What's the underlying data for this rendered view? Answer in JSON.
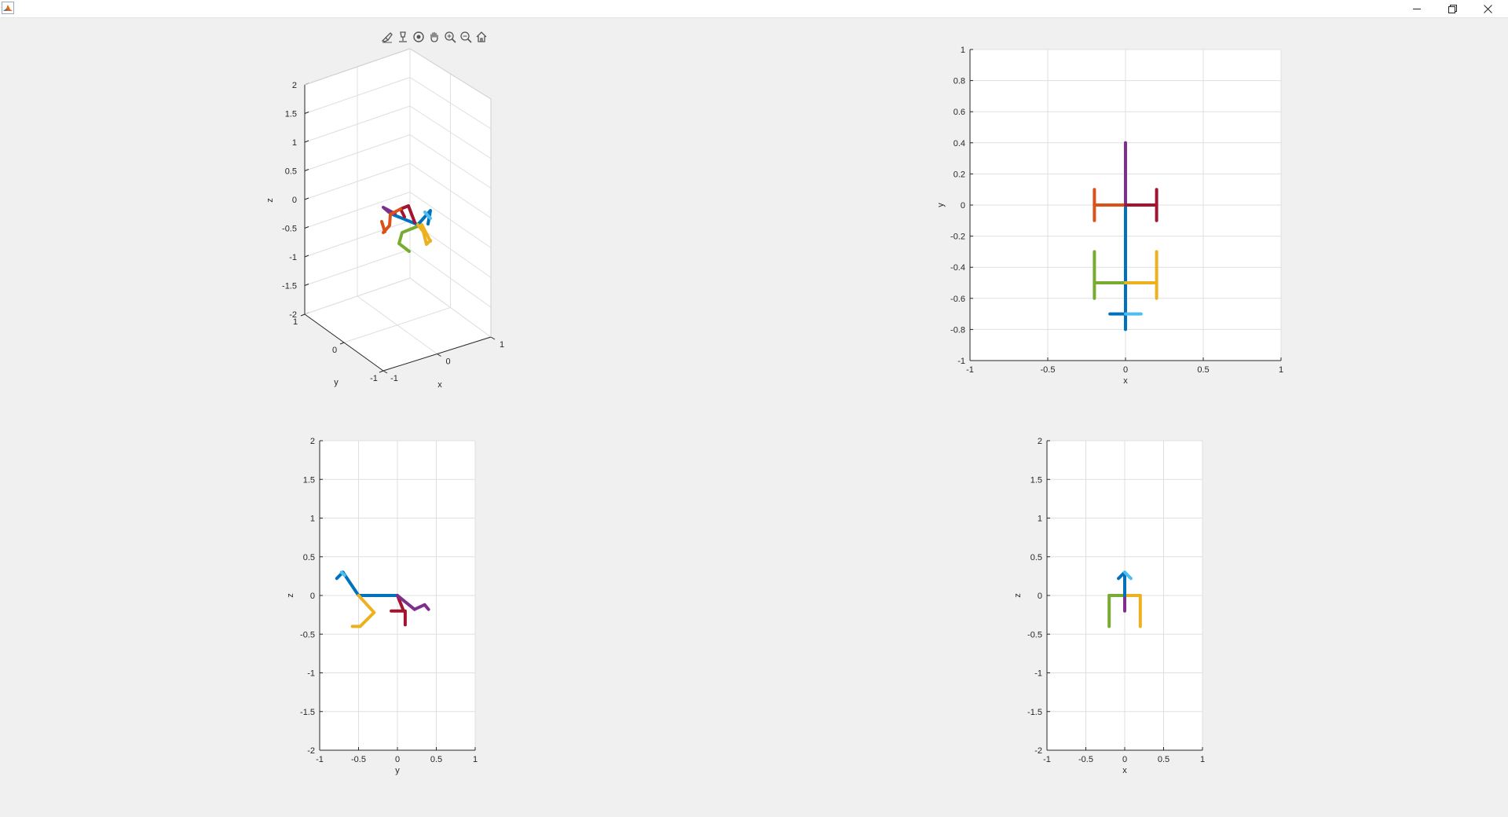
{
  "window": {
    "app_icon": "matlab-logo-icon",
    "controls": [
      "minimize-icon",
      "restore-icon",
      "close-icon"
    ]
  },
  "axes_toolbar": {
    "icons": [
      "brush-icon",
      "data-tips-icon",
      "rotate-3d-icon",
      "pan-hand-icon",
      "zoom-in-icon",
      "zoom-out-icon",
      "home-icon"
    ]
  },
  "chart_data": [
    {
      "type": "line",
      "view": "3d",
      "xlabel": "x",
      "ylabel": "y",
      "zlabel": "z",
      "xlim": [
        -1,
        1
      ],
      "ylim": [
        -1,
        1
      ],
      "zlim": [
        -2,
        2
      ],
      "xticks": [
        "-1",
        "0",
        "1"
      ],
      "yticks": [
        "-1",
        "0",
        "1"
      ],
      "zticks": [
        "-2",
        "-1.5",
        "-1",
        "-0.5",
        "0",
        "0.5",
        "1",
        "1.5",
        "2"
      ],
      "grid": true
    },
    {
      "type": "line",
      "xlabel": "x",
      "ylabel": "y",
      "xlim": [
        -1,
        1
      ],
      "ylim": [
        -1,
        1
      ],
      "xticks": [
        "-1",
        "-0.5",
        "0",
        "0.5",
        "1"
      ],
      "yticks": [
        "-1",
        "-0.8",
        "-0.6",
        "-0.4",
        "-0.2",
        "0",
        "0.2",
        "0.4",
        "0.6",
        "0.8",
        "1"
      ],
      "grid": true,
      "series": [
        {
          "color": "#7e2f8e",
          "x": [
            0,
            0
          ],
          "y": [
            0,
            0.4
          ]
        },
        {
          "color": "#0072bd",
          "x": [
            0,
            0
          ],
          "y": [
            0,
            -0.8
          ]
        },
        {
          "color": "#d95319",
          "x": [
            0,
            -0.2
          ],
          "y": [
            0,
            0
          ]
        },
        {
          "color": "#d95319",
          "x": [
            -0.2,
            -0.2
          ],
          "y": [
            -0.1,
            0.1
          ]
        },
        {
          "color": "#a2142f",
          "x": [
            0,
            0.2
          ],
          "y": [
            0,
            0
          ]
        },
        {
          "color": "#a2142f",
          "x": [
            0.2,
            0.2
          ],
          "y": [
            -0.1,
            0.1
          ]
        },
        {
          "color": "#77ac30",
          "x": [
            0,
            -0.2
          ],
          "y": [
            -0.5,
            -0.5
          ]
        },
        {
          "color": "#77ac30",
          "x": [
            -0.2,
            -0.2
          ],
          "y": [
            -0.3,
            -0.6
          ]
        },
        {
          "color": "#edb120",
          "x": [
            0,
            0.2
          ],
          "y": [
            -0.5,
            -0.5
          ]
        },
        {
          "color": "#edb120",
          "x": [
            0.2,
            0.2
          ],
          "y": [
            -0.3,
            -0.6
          ]
        },
        {
          "color": "#0072bd",
          "x": [
            -0.1,
            0
          ],
          "y": [
            -0.7,
            -0.7
          ]
        },
        {
          "color": "#4dbeee",
          "x": [
            0,
            0.1
          ],
          "y": [
            -0.7,
            -0.7
          ]
        }
      ]
    },
    {
      "type": "line",
      "xlabel": "y",
      "ylabel": "z",
      "xlim": [
        -1,
        1
      ],
      "ylim": [
        -2,
        2
      ],
      "xticks": [
        "-1",
        "-0.5",
        "0",
        "0.5",
        "1"
      ],
      "yticks": [
        "-2",
        "-1.5",
        "-1",
        "-0.5",
        "0",
        "0.5",
        "1",
        "1.5",
        "2"
      ],
      "grid": true,
      "series": [
        {
          "color": "#0072bd",
          "x": [
            -0.5,
            0
          ],
          "y": [
            0,
            0
          ]
        },
        {
          "color": "#0072bd",
          "x": [
            -0.5,
            -0.7
          ],
          "y": [
            0,
            0.3
          ]
        },
        {
          "color": "#0072bd",
          "x": [
            -0.7,
            -0.78
          ],
          "y": [
            0.3,
            0.22
          ]
        },
        {
          "color": "#4dbeee",
          "x": [
            -0.72,
            -0.68
          ],
          "y": [
            0.3,
            0.26
          ]
        },
        {
          "color": "#edb120",
          "x": [
            -0.5,
            -0.3
          ],
          "y": [
            0,
            -0.22
          ]
        },
        {
          "color": "#edb120",
          "x": [
            -0.3,
            -0.48
          ],
          "y": [
            -0.22,
            -0.4
          ]
        },
        {
          "color": "#edb120",
          "x": [
            -0.48,
            -0.58
          ],
          "y": [
            -0.4,
            -0.4
          ]
        },
        {
          "color": "#a2142f",
          "x": [
            0,
            0.08
          ],
          "y": [
            0,
            -0.2
          ]
        },
        {
          "color": "#a2142f",
          "x": [
            0.08,
            -0.08
          ],
          "y": [
            -0.2,
            -0.2
          ]
        },
        {
          "color": "#a2142f",
          "x": [
            0.1,
            0.1
          ],
          "y": [
            -0.2,
            -0.38
          ]
        },
        {
          "color": "#7e2f8e",
          "x": [
            0,
            0.22
          ],
          "y": [
            0,
            -0.18
          ]
        },
        {
          "color": "#7e2f8e",
          "x": [
            0.22,
            0.35
          ],
          "y": [
            -0.18,
            -0.12
          ]
        },
        {
          "color": "#7e2f8e",
          "x": [
            0.35,
            0.4
          ],
          "y": [
            -0.12,
            -0.18
          ]
        }
      ]
    },
    {
      "type": "line",
      "xlabel": "x",
      "ylabel": "z",
      "xlim": [
        -1,
        1
      ],
      "ylim": [
        -2,
        2
      ],
      "xticks": [
        "-1",
        "-0.5",
        "0",
        "0.5",
        "1"
      ],
      "yticks": [
        "-2",
        "-1.5",
        "-1",
        "-0.5",
        "0",
        "0.5",
        "1",
        "1.5",
        "2"
      ],
      "grid": true,
      "series": [
        {
          "color": "#77ac30",
          "x": [
            -0.2,
            0
          ],
          "y": [
            0,
            0
          ]
        },
        {
          "color": "#77ac30",
          "x": [
            -0.2,
            -0.2
          ],
          "y": [
            0,
            -0.4
          ]
        },
        {
          "color": "#edb120",
          "x": [
            0,
            0.2
          ],
          "y": [
            0,
            0
          ]
        },
        {
          "color": "#edb120",
          "x": [
            0.2,
            0.2
          ],
          "y": [
            0,
            -0.4
          ]
        },
        {
          "color": "#7e2f8e",
          "x": [
            0,
            0
          ],
          "y": [
            0,
            -0.2
          ]
        },
        {
          "color": "#0072bd",
          "x": [
            0,
            0
          ],
          "y": [
            0,
            0.3
          ]
        },
        {
          "color": "#0072bd",
          "x": [
            0,
            -0.08
          ],
          "y": [
            0.3,
            0.22
          ]
        },
        {
          "color": "#4dbeee",
          "x": [
            0,
            0.08
          ],
          "y": [
            0.3,
            0.22
          ]
        }
      ]
    }
  ]
}
